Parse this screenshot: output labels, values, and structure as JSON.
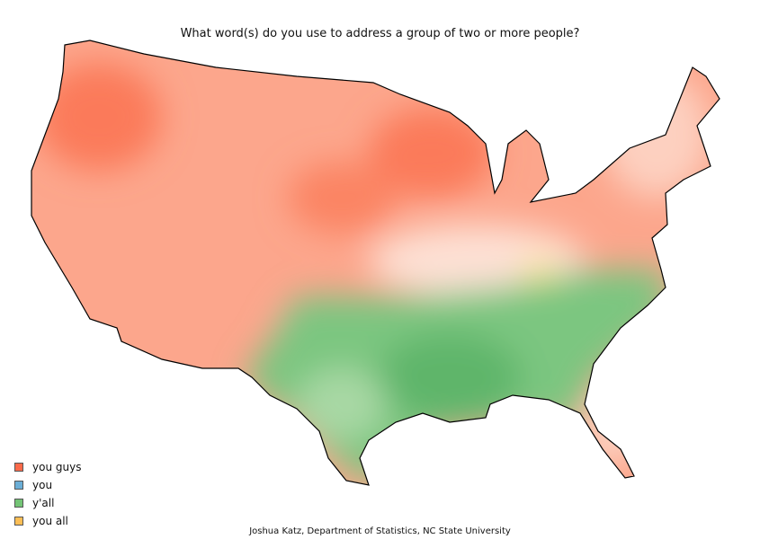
{
  "title": "What word(s) do you use to address a group of two or more people?",
  "legend": [
    {
      "label": "you guys",
      "color": "#fb6a4a"
    },
    {
      "label": "you",
      "color": "#6baed6"
    },
    {
      "label": "y'all",
      "color": "#74c476"
    },
    {
      "label": "you all",
      "color": "#fdbe55"
    }
  ],
  "credit": "Joshua Katz, Department of Statistics, NC State University"
}
